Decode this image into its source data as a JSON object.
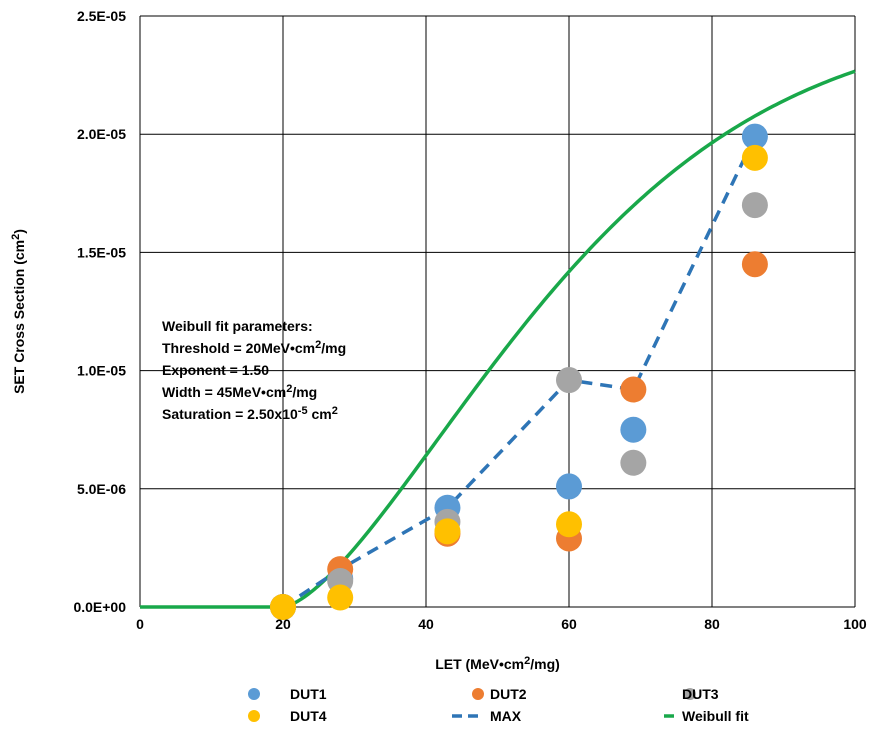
{
  "chart_data": {
    "type": "scatter",
    "title": "",
    "xlabel": {
      "main": "LET (MeV•cm",
      "sup": "2",
      "tail": "/mg)"
    },
    "ylabel": {
      "main": "SET Cross Section (cm",
      "sup": "2",
      "tail": ")"
    },
    "xlim": [
      0,
      100
    ],
    "ylim": [
      0,
      2.5e-05
    ],
    "x_ticks": [
      0,
      20,
      40,
      60,
      80,
      100
    ],
    "x_tick_labels": [
      "0",
      "20",
      "40",
      "60",
      "80",
      "100"
    ],
    "y_ticks": [
      0,
      5e-06,
      1e-05,
      1.5e-05,
      2e-05,
      2.5e-05
    ],
    "y_tick_labels": [
      "0.0E+00",
      "5.0E-06",
      "1.0E-05",
      "1.5E-05",
      "2.0E-05",
      "2.5E-05"
    ],
    "grid": true,
    "legend_position": "bottom",
    "series": [
      {
        "name": "DUT1",
        "kind": "markers",
        "color": "#5B9BD5",
        "points": [
          [
            20,
            0
          ],
          [
            28,
            1.2e-06
          ],
          [
            43,
            4.2e-06
          ],
          [
            60,
            5.1e-06
          ],
          [
            69,
            7.5e-06
          ],
          [
            86,
            1.99e-05
          ]
        ]
      },
      {
        "name": "DUT2",
        "kind": "markers",
        "color": "#ED7D31",
        "points": [
          [
            20,
            0
          ],
          [
            28,
            1.6e-06
          ],
          [
            43,
            3.1e-06
          ],
          [
            60,
            2.9e-06
          ],
          [
            69,
            9.2e-06
          ],
          [
            86,
            1.45e-05
          ]
        ]
      },
      {
        "name": "DUT3",
        "kind": "markers",
        "color": "#A5A5A5",
        "points": [
          [
            20,
            0
          ],
          [
            28,
            1.1e-06
          ],
          [
            43,
            3.6e-06
          ],
          [
            60,
            9.6e-06
          ],
          [
            69,
            6.1e-06
          ],
          [
            86,
            1.7e-05
          ]
        ]
      },
      {
        "name": "DUT4",
        "kind": "markers",
        "color": "#FFC000",
        "points": [
          [
            20,
            0
          ],
          [
            28,
            4e-07
          ],
          [
            43,
            3.2e-06
          ],
          [
            60,
            3.5e-06
          ],
          [
            86,
            1.9e-05
          ]
        ]
      },
      {
        "name": "MAX",
        "kind": "dashed-line",
        "color": "#2E75B6",
        "points": [
          [
            20,
            0
          ],
          [
            28,
            1.6e-06
          ],
          [
            43,
            4.2e-06
          ],
          [
            60,
            9.6e-06
          ],
          [
            69,
            9.2e-06
          ],
          [
            86,
            1.99e-05
          ]
        ]
      },
      {
        "name": "Weibull fit",
        "kind": "line",
        "color": "#19A84A",
        "weibull": {
          "threshold": 20,
          "exponent": 1.5,
          "width": 45,
          "saturation": 2.5e-05
        }
      }
    ],
    "annotation": {
      "lines": [
        {
          "main": "Weibull fit parameters:",
          "sup": "",
          "tail": ""
        },
        {
          "main": "Threshold = 20MeV•cm",
          "sup": "2",
          "tail": "/mg"
        },
        {
          "main": "Exponent = 1.50",
          "sup": "",
          "tail": ""
        },
        {
          "main": "Width = 45MeV•cm",
          "sup": "2",
          "tail": "/mg"
        },
        {
          "main": "Saturation = 2.50x10",
          "sup": "-5",
          "tail": " cm",
          "sup2": "2"
        }
      ]
    }
  }
}
